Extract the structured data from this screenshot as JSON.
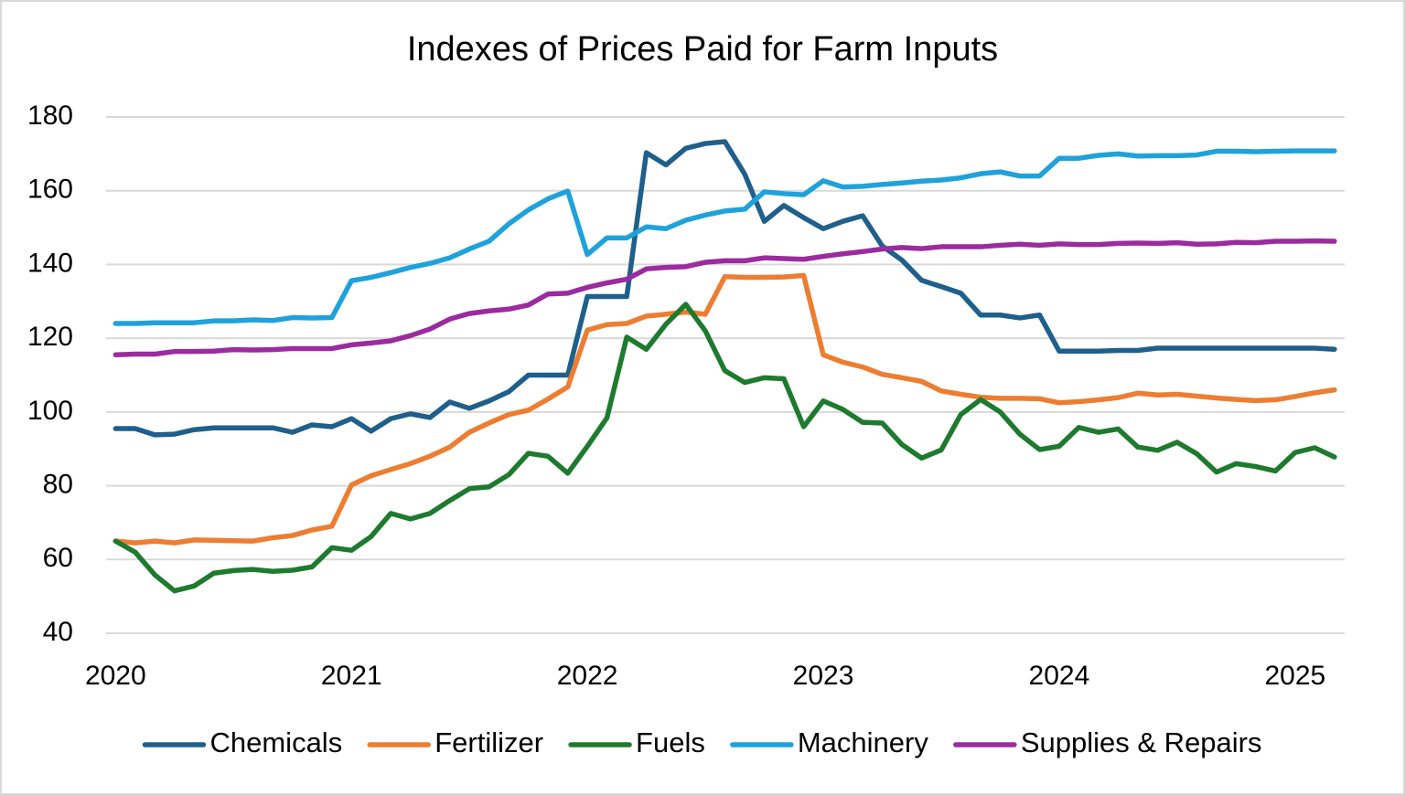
{
  "chart_data": {
    "type": "line",
    "title": "Indexes of Prices Paid for Farm Inputs",
    "x": [
      2020,
      2020.083,
      2020.167,
      2020.25,
      2020.333,
      2020.417,
      2020.5,
      2020.583,
      2020.667,
      2020.75,
      2020.833,
      2020.917,
      2021,
      2021.083,
      2021.167,
      2021.25,
      2021.333,
      2021.417,
      2021.5,
      2021.583,
      2021.667,
      2021.75,
      2021.833,
      2021.917,
      2022,
      2022.083,
      2022.167,
      2022.25,
      2022.333,
      2022.417,
      2022.5,
      2022.583,
      2022.667,
      2022.75,
      2022.833,
      2022.917,
      2023,
      2023.083,
      2023.167,
      2023.25,
      2023.333,
      2023.417,
      2023.5,
      2023.583,
      2023.667,
      2023.75,
      2023.833,
      2023.917,
      2024,
      2024.083,
      2024.167,
      2024.25,
      2024.333,
      2024.417,
      2024.5,
      2024.583,
      2024.667,
      2024.75,
      2024.833,
      2024.917,
      2025,
      2025.083,
      2025.167
    ],
    "xlim": [
      2019.96,
      2025.21
    ],
    "xticks": [
      2020,
      2021,
      2022,
      2023,
      2024,
      2025
    ],
    "ylim": [
      40,
      180
    ],
    "yticks": [
      40,
      60,
      80,
      100,
      120,
      140,
      160,
      180
    ],
    "grid": true,
    "legend": "bottom",
    "series": [
      {
        "name": "Chemicals",
        "color": "#1f5f8b",
        "values": [
          95.5,
          95.5,
          93.8,
          94,
          95.2,
          95.7,
          95.7,
          95.7,
          95.7,
          94.5,
          96.5,
          96,
          98.2,
          94.8,
          98.2,
          99.5,
          98.5,
          102.7,
          101,
          103,
          105.5,
          110,
          110,
          110,
          131.3,
          131.3,
          131.3,
          170.3,
          167,
          171.5,
          172.8,
          173.3,
          164.5,
          151.7,
          156,
          152.7,
          149.7,
          151.7,
          153.2,
          145,
          141.2,
          135.7,
          134,
          132.2,
          126.3,
          126.3,
          125.5,
          126.3,
          116.5,
          116.5,
          116.5,
          116.7,
          116.7,
          117.3,
          117.3,
          117.3,
          117.3,
          117.3,
          117.3,
          117.3,
          117.3,
          117.3,
          117
        ]
      },
      {
        "name": "Fertilizer",
        "color": "#ed7d31",
        "values": [
          65,
          64.5,
          65,
          64.5,
          65.3,
          65.2,
          65.1,
          65,
          65.9,
          66.5,
          68,
          69,
          80.2,
          82.7,
          84.4,
          86,
          88,
          90.5,
          94.5,
          97,
          99.3,
          100.5,
          103.5,
          106.8,
          122.2,
          123.7,
          124,
          126,
          126.5,
          127.1,
          126.5,
          136.7,
          136.5,
          136.5,
          136.6,
          137,
          115.5,
          113.5,
          112.2,
          110.2,
          109.3,
          108.3,
          105.7,
          104.8,
          104,
          103.7,
          103.7,
          103.6,
          102.5,
          102.8,
          103.3,
          103.9,
          105.1,
          104.6,
          104.8,
          104.3,
          103.8,
          103.4,
          103.1,
          103.3,
          104.2,
          105.2,
          106
        ]
      },
      {
        "name": "Fuels",
        "color": "#1e7a2e",
        "values": [
          65,
          62,
          55.8,
          51.5,
          52.8,
          56.3,
          57,
          57.3,
          56.8,
          57.1,
          58,
          63.2,
          62.5,
          66.2,
          72.5,
          71,
          72.5,
          76,
          79.2,
          79.7,
          83,
          88.8,
          88,
          83.4,
          90.7,
          98.4,
          120.3,
          117,
          123.8,
          129.2,
          122,
          111.2,
          108,
          109.3,
          109,
          96,
          103,
          100.7,
          97.2,
          97,
          91.2,
          87.5,
          89.7,
          99.3,
          103.4,
          100,
          94,
          89.8,
          90.7,
          95.8,
          94.5,
          95.4,
          90.5,
          89.6,
          91.8,
          88.7,
          83.7,
          86,
          85.2,
          84,
          89,
          90.3,
          87.8
        ]
      },
      {
        "name": "Machinery",
        "color": "#1fa2db",
        "values": [
          124,
          124,
          124.2,
          124.2,
          124.2,
          124.7,
          124.7,
          125,
          124.8,
          125.6,
          125.5,
          125.6,
          135.6,
          136.5,
          137.8,
          139.2,
          140.3,
          141.8,
          144.2,
          146.3,
          151,
          154.8,
          157.8,
          159.9,
          142.7,
          147.2,
          147.2,
          150.2,
          149.7,
          152,
          153.4,
          154.5,
          155,
          159.7,
          159.2,
          158.9,
          162.7,
          161,
          161.2,
          161.7,
          162.1,
          162.6,
          162.9,
          163.5,
          164.6,
          165.1,
          164,
          164,
          168.8,
          168.8,
          169.6,
          170,
          169.4,
          169.5,
          169.5,
          169.7,
          170.7,
          170.7,
          170.6,
          170.7,
          170.8,
          170.8,
          170.8
        ]
      },
      {
        "name": "Supplies & Repairs",
        "color": "#9b2b9e",
        "values": [
          115.5,
          115.7,
          115.7,
          116.4,
          116.4,
          116.5,
          116.9,
          116.8,
          116.9,
          117.2,
          117.2,
          117.2,
          118.2,
          118.7,
          119.3,
          120.7,
          122.5,
          125.2,
          126.7,
          127.4,
          127.9,
          129,
          132,
          132.2,
          133.8,
          135,
          136,
          138.8,
          139.2,
          139.4,
          140.6,
          141,
          141,
          141.8,
          141.6,
          141.4,
          142.2,
          142.9,
          143.5,
          144.2,
          144.6,
          144.3,
          144.8,
          144.8,
          144.8,
          145.2,
          145.5,
          145.2,
          145.6,
          145.4,
          145.4,
          145.7,
          145.8,
          145.7,
          145.9,
          145.5,
          145.6,
          146,
          145.9,
          146.3,
          146.3,
          146.4,
          146.3
        ]
      }
    ]
  }
}
